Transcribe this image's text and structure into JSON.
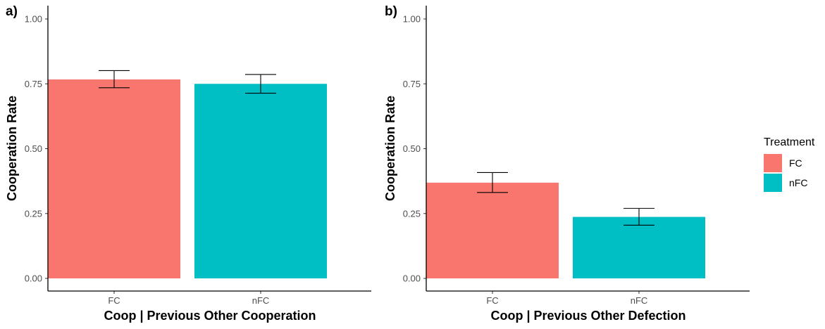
{
  "chart_data": [
    {
      "type": "bar",
      "panel_tag": "a)",
      "categories": [
        "FC",
        "nFC"
      ],
      "values": [
        0.767,
        0.75
      ],
      "error_low": [
        0.735,
        0.714
      ],
      "error_high": [
        0.801,
        0.786
      ],
      "xlabel": "Coop | Previous Other Cooperation",
      "ylabel": "Cooperation Rate",
      "ylim": [
        0,
        1.0
      ],
      "yticks": [
        "0.00",
        "0.25",
        "0.50",
        "0.75",
        "1.00"
      ],
      "grid": false
    },
    {
      "type": "bar",
      "panel_tag": "b)",
      "categories": [
        "FC",
        "nFC"
      ],
      "values": [
        0.369,
        0.237
      ],
      "error_low": [
        0.331,
        0.205
      ],
      "error_high": [
        0.408,
        0.27
      ],
      "xlabel": "Coop | Previous Other Defection",
      "ylabel": "Cooperation Rate",
      "ylim": [
        0,
        1.0
      ],
      "yticks": [
        "0.00",
        "0.25",
        "0.50",
        "0.75",
        "1.00"
      ],
      "grid": false
    }
  ],
  "legend": {
    "title": "Treatment",
    "placement": "right",
    "items": [
      {
        "label": "FC",
        "color": "#F8766D"
      },
      {
        "label": "nFC",
        "color": "#00BFC4"
      }
    ]
  }
}
